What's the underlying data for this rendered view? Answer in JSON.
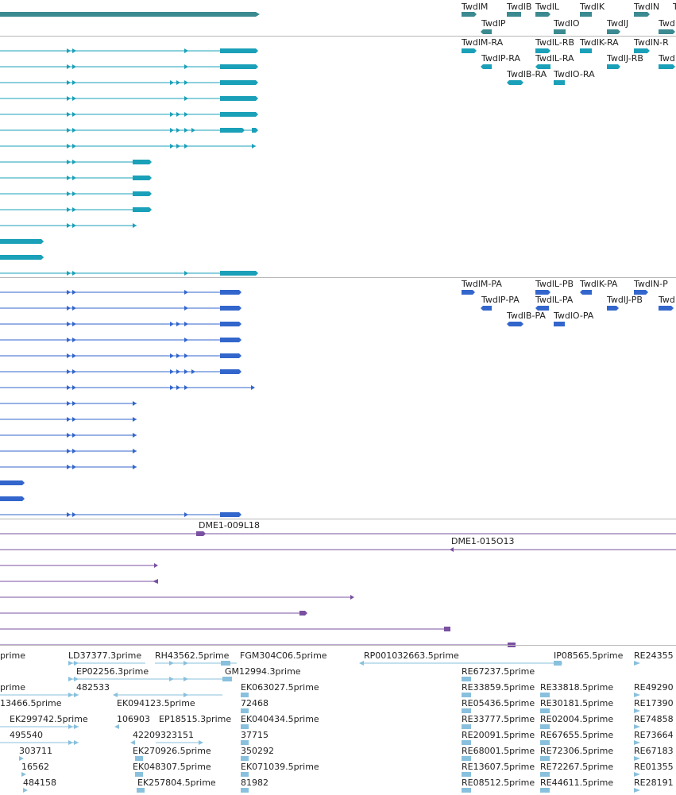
{
  "colors": {
    "gene": "#3a8a90",
    "transcript": "#1aa0b8",
    "protein": "#3366cc",
    "clone": "#7a50a0",
    "est": "#88c0dd",
    "separator": "#b8b8b8"
  },
  "tracks": {
    "genes": {
      "labels": [
        "TwdlM",
        "TwdlB",
        "TwdlL",
        "TwdlK",
        "TwdlN",
        "T",
        "TwdlP",
        "TwdlO",
        "TwdlJ",
        "Twd"
      ]
    },
    "transcripts": {
      "labels": [
        "TwdlM-RA",
        "TwdlL-RB",
        "TwdlK-RA",
        "TwdlN-R",
        "TwdlP-RA",
        "TwdlL-RA",
        "TwdlJ-RB",
        "Twd",
        "TwdlB-RA",
        "TwdlO-RA"
      ]
    },
    "proteins": {
      "labels": [
        "TwdlM-PA",
        "TwdlL-PB",
        "TwdlK-PA",
        "TwdlN-P",
        "TwdlP-PA",
        "TwdlL-PA",
        "TwdlJ-PB",
        "Twd",
        "TwdlB-PA",
        "TwdlO-PA"
      ]
    },
    "clones": {
      "labels": [
        "DME1-009L18",
        "DME1-015O13"
      ]
    },
    "ests": {
      "labels": [
        "prime",
        "LD37377.3prime",
        "RH43562.5prime",
        "FGM304C06.5prime",
        "RP001032663.5prime",
        "IP08565.5prime",
        "RE24355",
        "EP02256.3prime",
        "RE67237.5prime",
        "prime",
        "482533",
        "GM12994.3prime",
        "RE33859.5prime",
        "RE33818.5prime",
        "RE49290",
        "EK063027.5prime",
        "13466.5prime",
        "EK094123.5prime",
        "72468",
        "RE05436.5prime",
        "RE30181.5prime",
        "RE17390",
        "EK299742.5prime",
        "106903",
        "EP18515.3prime",
        "EK040434.5prime",
        "RE33777.5prime",
        "RE02004.5prime",
        "RE74858",
        "495540",
        "42209323151",
        "37715",
        "RE20091.5prime",
        "RE67655.5prime",
        "RE73664",
        "303711",
        "EK270926.5prime",
        "350292",
        "RE68001.5prime",
        "RE72306.5prime",
        "RE67183",
        "16562",
        "EK048307.5prime",
        "EK071039.5prime",
        "RE13607.5prime",
        "RE72267.5prime",
        "RE01355",
        "484158",
        "EK257804.5prime",
        "81982",
        "RE08512.5prime",
        "RE44611.5prime",
        "RE28191"
      ]
    }
  }
}
